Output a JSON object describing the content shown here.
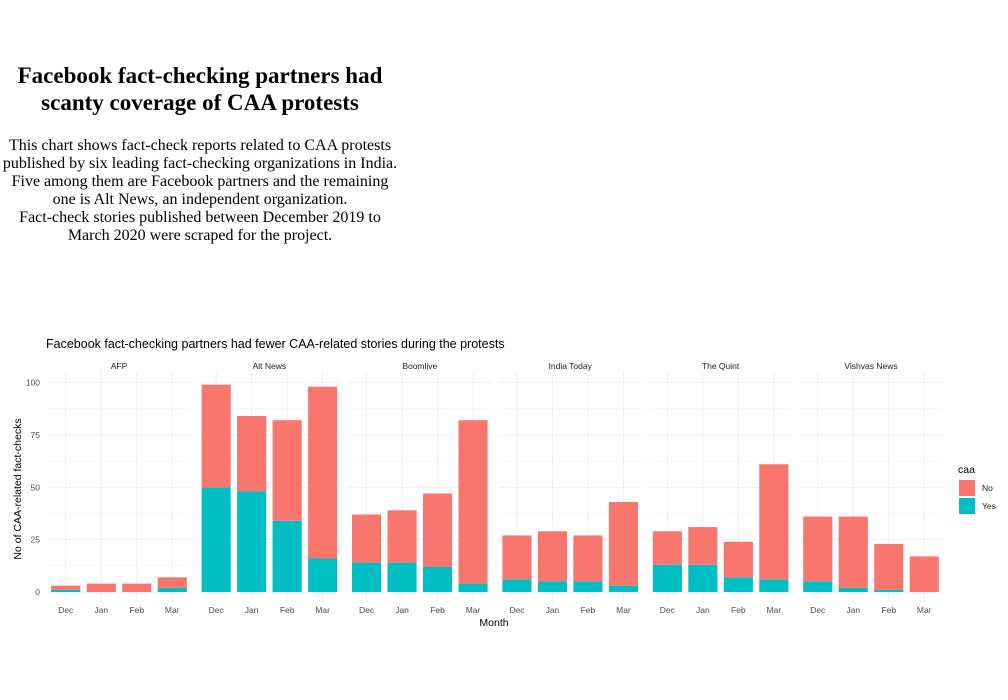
{
  "headline": "Facebook fact-checking partners had scanty coverage of CAA protests",
  "description": [
    "This chart shows fact-check reports related to CAA protests published by six leading fact-checking organizations in India.",
    "Five among them are Facebook partners and the remaining one is Alt News, an independent organization.",
    "Fact-check stories published between December 2019 to March 2020 were scraped for the project."
  ],
  "chart_data": {
    "type": "bar",
    "stacked": true,
    "title": "Facebook fact-checking partners had fewer CAA-related stories during the protests",
    "xlabel": "Month",
    "ylabel": "No of CAA-related fact-checks",
    "ylim": [
      0,
      104
    ],
    "yticks": [
      0,
      25,
      50,
      75,
      100
    ],
    "grid": true,
    "legend": {
      "title": "caa",
      "position": "right"
    },
    "categories": [
      "Dec",
      "Jan",
      "Feb",
      "Mar"
    ],
    "series": [
      {
        "name": "No",
        "color": "#F8766D"
      },
      {
        "name": "Yes",
        "color": "#00BFC4"
      }
    ],
    "facets": [
      {
        "name": "AFP",
        "no": [
          2,
          4,
          4,
          5
        ],
        "yes": [
          1,
          0,
          0,
          2
        ]
      },
      {
        "name": "Alt News",
        "no": [
          49,
          36,
          48,
          82
        ],
        "yes": [
          50,
          48,
          34,
          16
        ]
      },
      {
        "name": "Boomlive",
        "no": [
          23,
          25,
          35,
          78
        ],
        "yes": [
          14,
          14,
          12,
          4
        ]
      },
      {
        "name": "India Today",
        "no": [
          21,
          24,
          22,
          40
        ],
        "yes": [
          6,
          5,
          5,
          3
        ]
      },
      {
        "name": "The Quint",
        "no": [
          16,
          18,
          17,
          55
        ],
        "yes": [
          13,
          13,
          7,
          6
        ]
      },
      {
        "name": "Vishvas News",
        "no": [
          31,
          34,
          22,
          17
        ],
        "yes": [
          5,
          2,
          1,
          0
        ]
      }
    ]
  }
}
